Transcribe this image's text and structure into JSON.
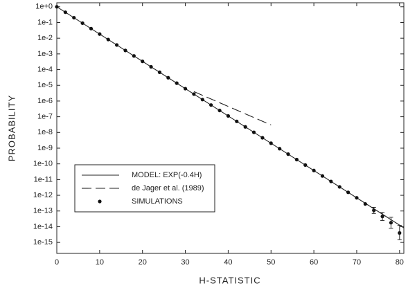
{
  "chart_data": {
    "type": "line",
    "x_label": "H-STATISTIC",
    "y_label": "PROBABILITY",
    "log_y": true,
    "xlim": [
      0,
      81
    ],
    "ylim": [
      2e-16,
      1.8
    ],
    "xticks": [
      0,
      10,
      20,
      30,
      40,
      50,
      60,
      70,
      80
    ],
    "yticks": [
      {
        "value": 1,
        "label": "1e+0"
      },
      {
        "value": 0.1,
        "label": "1e-1"
      },
      {
        "value": 0.01,
        "label": "1e-2"
      },
      {
        "value": 0.001,
        "label": "1e-3"
      },
      {
        "value": 0.0001,
        "label": "1e-4"
      },
      {
        "value": 1e-05,
        "label": "1e-5"
      },
      {
        "value": 1e-06,
        "label": "1e-6"
      },
      {
        "value": 1e-07,
        "label": "1e-7"
      },
      {
        "value": 1e-08,
        "label": "1e-8"
      },
      {
        "value": 1e-09,
        "label": "1e-9"
      },
      {
        "value": 1e-10,
        "label": "1e-10"
      },
      {
        "value": 1e-11,
        "label": "1e-11"
      },
      {
        "value": 1e-12,
        "label": "1e-12"
      },
      {
        "value": 1e-13,
        "label": "1e-13"
      },
      {
        "value": 1e-14,
        "label": "1e-14"
      },
      {
        "value": 1e-15,
        "label": "1e-15"
      }
    ],
    "legend": "lower-left",
    "series": [
      {
        "name": "MODEL: EXP(-0.4H)",
        "color": "#222222",
        "style": "solid",
        "x": [
          0,
          81
        ],
        "values": [
          1,
          8.5e-15
        ]
      },
      {
        "name": "de Jager et al. (1989)",
        "color": "#222222",
        "style": "dashed",
        "x": [
          32,
          50
        ],
        "values": [
          4e-06,
          3e-08
        ]
      },
      {
        "name": "SIMULATIONS",
        "color": "#111111",
        "style": "markers",
        "x": [
          0,
          2,
          4,
          6,
          8,
          10,
          12,
          14,
          16,
          18,
          20,
          22,
          24,
          26,
          28,
          30,
          32,
          34,
          36,
          38,
          40,
          42,
          44,
          46,
          48,
          50,
          52,
          54,
          56,
          58,
          60,
          62,
          64,
          66,
          68,
          70,
          72,
          74,
          76,
          78,
          80
        ],
        "values": [
          1,
          0.449,
          0.202,
          0.0907,
          0.0408,
          0.0183,
          0.00823,
          0.0037,
          0.00166,
          0.000747,
          0.000335,
          0.000151,
          6.77e-05,
          3.04e-05,
          1.37e-05,
          6.14e-06,
          2.76e-06,
          1.24e-06,
          5.57e-07,
          2.5e-07,
          1.13e-07,
          5.06e-08,
          2.27e-08,
          1.02e-08,
          4.59e-09,
          2.06e-09,
          9.27e-10,
          4.17e-10,
          1.87e-10,
          8.41e-11,
          3.78e-11,
          1.7e-11,
          7.63e-12,
          3.43e-12,
          1.54e-12,
          6.91e-13,
          2.8e-13,
          1.1e-13,
          4.5e-14,
          1.8e-14,
          4e-15
        ]
      }
    ],
    "error_bars": {
      "x": [
        74,
        76,
        78,
        80
      ],
      "low": [
        7e-14,
        2.5e-14,
        8e-15,
        1.5e-15
      ],
      "high": [
        1.7e-13,
        8e-14,
        4e-14,
        1.2e-14
      ]
    }
  }
}
